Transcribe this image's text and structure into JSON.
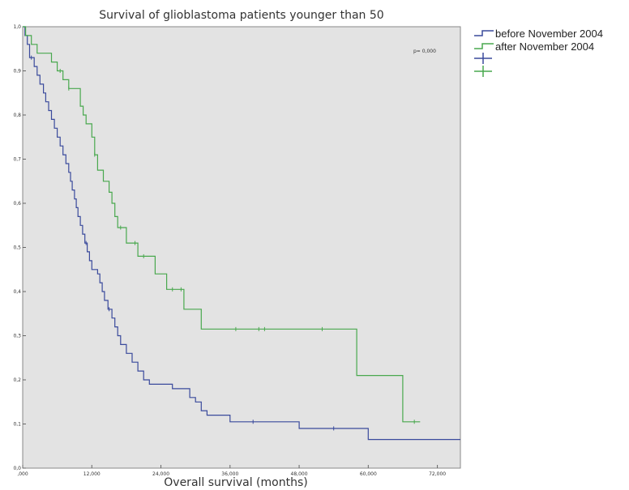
{
  "chart_data": {
    "type": "line",
    "title": "Survival of glioblastoma patients younger than 50",
    "xlabel": "Overall survival (months)",
    "ylabel": "",
    "xlim": [
      0,
      76
    ],
    "ylim": [
      0,
      1.0
    ],
    "x_ticks": [
      0,
      12,
      24,
      36,
      48,
      60,
      72,
      84
    ],
    "x_tick_labels": [
      ",000",
      "12,000",
      "24,000",
      "36,000",
      "48,000",
      "60,000",
      "72,000",
      "84,000"
    ],
    "y_ticks": [
      0,
      0.1,
      0.2,
      0.3,
      0.4,
      0.5,
      0.6,
      0.7,
      0.8,
      0.9,
      1.0
    ],
    "y_tick_labels": [
      "0,0",
      "0,1",
      "0,2",
      "0,3",
      "0,4",
      "0,5",
      "0,6",
      "0,7",
      "0,8",
      "0,9",
      "1,0"
    ],
    "p_value": "p= 0,000",
    "grid": false,
    "legend_position": "right",
    "legend": [
      {
        "label": "before November 2004",
        "color": "#3a4a9c",
        "marker": "step"
      },
      {
        "label": "after November 2004",
        "color": "#49a84e",
        "marker": "step"
      },
      {
        "label": "",
        "color": "#3a4a9c",
        "marker": "plus"
      },
      {
        "label": "",
        "color": "#49a84e",
        "marker": "plus"
      }
    ],
    "series": [
      {
        "name": "before November 2004",
        "color": "#3a4a9c",
        "steps": [
          [
            0,
            1.0
          ],
          [
            0.4,
            0.98
          ],
          [
            0.8,
            0.96
          ],
          [
            1.2,
            0.93
          ],
          [
            2,
            0.91
          ],
          [
            2.5,
            0.89
          ],
          [
            3,
            0.87
          ],
          [
            3.6,
            0.85
          ],
          [
            4,
            0.83
          ],
          [
            4.5,
            0.81
          ],
          [
            5,
            0.79
          ],
          [
            5.5,
            0.77
          ],
          [
            6,
            0.75
          ],
          [
            6.5,
            0.73
          ],
          [
            7,
            0.71
          ],
          [
            7.5,
            0.69
          ],
          [
            8,
            0.67
          ],
          [
            8.3,
            0.65
          ],
          [
            8.6,
            0.63
          ],
          [
            9,
            0.61
          ],
          [
            9.3,
            0.59
          ],
          [
            9.6,
            0.57
          ],
          [
            10,
            0.55
          ],
          [
            10.4,
            0.53
          ],
          [
            10.8,
            0.51
          ],
          [
            11.2,
            0.49
          ],
          [
            11.6,
            0.47
          ],
          [
            12,
            0.45
          ],
          [
            13,
            0.44
          ],
          [
            13.4,
            0.42
          ],
          [
            13.8,
            0.4
          ],
          [
            14.2,
            0.38
          ],
          [
            14.8,
            0.36
          ],
          [
            15.5,
            0.34
          ],
          [
            16,
            0.32
          ],
          [
            16.5,
            0.3
          ],
          [
            17,
            0.28
          ],
          [
            18,
            0.26
          ],
          [
            19,
            0.24
          ],
          [
            20,
            0.22
          ],
          [
            21,
            0.2
          ],
          [
            22,
            0.19
          ],
          [
            26,
            0.18
          ],
          [
            29,
            0.16
          ],
          [
            30,
            0.15
          ],
          [
            31,
            0.13
          ],
          [
            32,
            0.12
          ],
          [
            36,
            0.105
          ],
          [
            48,
            0.09
          ],
          [
            60,
            0.065
          ],
          [
            76,
            0.065
          ]
        ],
        "censor_x": [
          1.5,
          11,
          15,
          40,
          54,
          85,
          87
        ]
      },
      {
        "name": "after November 2004",
        "color": "#49a84e",
        "steps": [
          [
            0,
            1.0
          ],
          [
            0.5,
            0.98
          ],
          [
            1.5,
            0.96
          ],
          [
            2.5,
            0.94
          ],
          [
            5,
            0.92
          ],
          [
            6,
            0.9
          ],
          [
            7,
            0.88
          ],
          [
            8,
            0.86
          ],
          [
            10,
            0.82
          ],
          [
            10.5,
            0.8
          ],
          [
            11,
            0.78
          ],
          [
            12,
            0.75
          ],
          [
            12.5,
            0.71
          ],
          [
            13,
            0.675
          ],
          [
            14,
            0.65
          ],
          [
            15,
            0.625
          ],
          [
            15.5,
            0.6
          ],
          [
            16,
            0.57
          ],
          [
            16.5,
            0.545
          ],
          [
            18,
            0.51
          ],
          [
            20,
            0.48
          ],
          [
            23,
            0.44
          ],
          [
            25,
            0.405
          ],
          [
            28,
            0.36
          ],
          [
            31,
            0.315
          ],
          [
            58,
            0.21
          ],
          [
            66,
            0.105
          ],
          [
            69,
            0.105
          ]
        ],
        "censor_x": [
          6.5,
          8,
          12.5,
          17,
          19.5,
          21,
          26,
          27.5,
          37,
          41,
          42,
          52,
          68
        ]
      }
    ]
  }
}
